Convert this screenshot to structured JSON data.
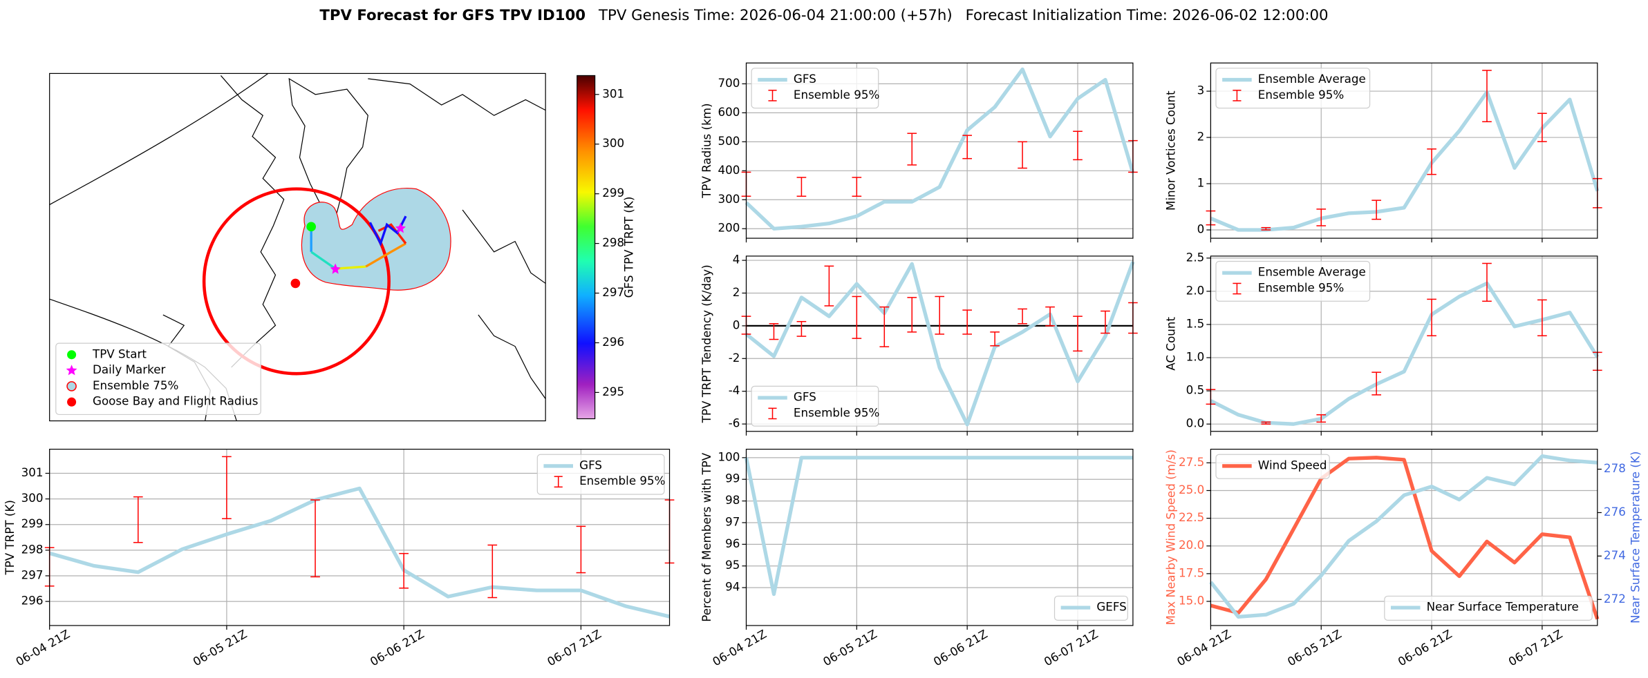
{
  "suptitle": {
    "title": "TPV Forecast for GFS TPV ID100",
    "genesis": "TPV Genesis Time: 2026-06-04 21:00:00 (+57h)",
    "init": "Forecast Initialization Time: 2026-06-02 12:00:00"
  },
  "chart_data": [
    {
      "type": "map",
      "colorbar": {
        "label": "GFS TPV TRPT (K)",
        "lim": [
          294.47,
          301.38
        ],
        "ticks": [
          295,
          296,
          297,
          298,
          299,
          300,
          301
        ]
      },
      "legend_loc": "lower left",
      "legend": [
        {
          "name": "TPV Start",
          "marker": "o",
          "color": "#00ff00"
        },
        {
          "name": "Daily Marker",
          "marker": "*",
          "color": "#ff00ff"
        },
        {
          "name": "Ensemble 75%",
          "marker": "o",
          "color": "#add8e6",
          "edgecolor": "#ff0000"
        },
        {
          "name": "Goose Bay and Flight Radius",
          "marker": "o",
          "color": "#ff0000"
        }
      ]
    },
    {
      "type": "line",
      "categories": [
        "06-04 21Z",
        null,
        null,
        null,
        "06-05 21Z",
        null,
        null,
        null,
        "06-06 21Z",
        null,
        null,
        null,
        "06-07 21Z",
        null,
        null
      ],
      "ylabel": "TPV TRPT (K)",
      "ylim": [
        295.06,
        301.94
      ],
      "yticks": [
        296,
        297,
        298,
        299,
        300,
        301
      ],
      "grid": true,
      "legend": "upper right",
      "series": [
        {
          "name": "GFS",
          "color": "#add8e6",
          "values": [
            297.88,
            297.39,
            297.14,
            298.04,
            298.62,
            299.15,
            299.96,
            300.41,
            297.22,
            296.19,
            296.56,
            296.43,
            296.43,
            295.82,
            295.41
          ]
        },
        {
          "name": "Ensemble 95%",
          "kind": "errorbar",
          "color": "#ff0000",
          "lower": [
            296.6,
            null,
            298.3,
            null,
            299.23,
            null,
            296.96,
            null,
            296.52,
            null,
            296.15,
            null,
            297.12,
            null,
            297.5
          ],
          "upper": [
            298.1,
            null,
            300.08,
            null,
            301.65,
            null,
            299.96,
            null,
            297.87,
            null,
            298.2,
            null,
            298.93,
            null,
            299.96
          ]
        }
      ]
    },
    {
      "type": "line",
      "categories": [
        "06-04 21Z",
        null,
        null,
        null,
        "06-05 21Z",
        null,
        null,
        null,
        "06-06 21Z",
        null,
        null,
        null,
        "06-07 21Z",
        null,
        null
      ],
      "panels": [
        {
          "ylabel": "TPV Radius (km)",
          "ylim": [
            167,
            772
          ],
          "yticks": [
            200,
            300,
            400,
            500,
            600,
            700
          ],
          "grid": true,
          "legend": "upper left",
          "series": [
            {
              "name": "GFS",
              "color": "#add8e6",
              "values": [
                290,
                200,
                207,
                218,
                243,
                293,
                293,
                344,
                540,
                620,
                750,
                518,
                649,
                714,
                392
              ]
            },
            {
              "name": "Ensemble 95%",
              "kind": "errorbar",
              "color": "#ff0000",
              "lower": [
                312,
                null,
                312,
                null,
                312,
                null,
                420,
                null,
                442,
                null,
                409,
                null,
                438,
                null,
                395
              ],
              "upper": [
                395,
                null,
                377,
                null,
                377,
                null,
                529,
                null,
                522,
                null,
                500,
                null,
                536,
                null,
                504
              ]
            }
          ]
        },
        {
          "ylabel": "TPV TRPT Tendency (K/day)",
          "ylim": [
            -6.45,
            4.26
          ],
          "yticks": [
            -6,
            -4,
            -2,
            0,
            2,
            4
          ],
          "grid": true,
          "legend": "lower left",
          "hline": 0,
          "series": [
            {
              "name": "GFS",
              "color": "#add8e6",
              "values": [
                -0.51,
                -1.86,
                1.73,
                0.58,
                2.56,
                0.77,
                3.78,
                -2.56,
                -6.03,
                -1.28,
                -0.38,
                0.71,
                -3.4,
                -0.64,
                3.91
              ]
            },
            {
              "name": "Ensemble 95%",
              "kind": "errorbar",
              "color": "#ff0000",
              "lower": [
                -0.51,
                -0.83,
                -0.64,
                1.22,
                -0.77,
                -1.28,
                -0.38,
                -0.51,
                -0.51,
                -1.22,
                0.13,
                0,
                -1.54,
                -0.45,
                -0.45
              ],
              "upper": [
                0.58,
                0.13,
                0.26,
                3.65,
                1.79,
                1.15,
                1.73,
                1.79,
                0.96,
                -0.38,
                1.03,
                1.15,
                0.58,
                0.9,
                1.41
              ]
            }
          ]
        },
        {
          "ylabel": "Percent of Members with TPV",
          "ylim": [
            92.25,
            100.39
          ],
          "yticks": [
            94,
            95,
            96,
            97,
            98,
            99,
            100
          ],
          "grid": true,
          "legend": "lower right",
          "series": [
            {
              "name": "GEFS",
              "color": "#add8e6",
              "values": [
                100,
                93.7,
                100,
                100,
                100,
                100,
                100,
                100,
                100,
                100,
                100,
                100,
                100,
                100,
                100
              ]
            }
          ]
        }
      ]
    },
    {
      "type": "line",
      "categories": [
        "06-04 21Z",
        null,
        null,
        null,
        "06-05 21Z",
        null,
        null,
        null,
        "06-06 21Z",
        null,
        null,
        null,
        "06-07 21Z",
        null,
        null
      ],
      "panels": [
        {
          "ylabel": "Minor Vortices Count",
          "ylim": [
            -0.18,
            3.61
          ],
          "yticks": [
            0,
            1,
            2,
            3
          ],
          "grid": true,
          "legend": "upper left",
          "series": [
            {
              "name": "Ensemble Average",
              "color": "#add8e6",
              "values": [
                0.25,
                0,
                0,
                0.05,
                0.25,
                0.36,
                0.39,
                0.48,
                1.45,
                2.14,
                2.98,
                1.34,
                2.2,
                2.82,
                0.84
              ]
            },
            {
              "name": "Ensemble 95%",
              "kind": "errorbar",
              "color": "#ff0000",
              "lower": [
                0.11,
                null,
                0,
                null,
                0.09,
                null,
                0.23,
                null,
                1.2,
                null,
                2.34,
                null,
                1.91,
                null,
                0.48
              ],
              "upper": [
                0.41,
                null,
                0.05,
                null,
                0.45,
                null,
                0.64,
                null,
                1.75,
                null,
                3.45,
                null,
                2.52,
                null,
                1.11
              ]
            }
          ]
        },
        {
          "ylabel": "AC Count",
          "ylim": [
            -0.11,
            2.53
          ],
          "yticks": [
            {
              "value": 0,
              "label": "0.0"
            },
            0.5,
            {
              "value": 1,
              "label": "1.0"
            },
            1.5,
            {
              "value": 2,
              "label": "2.0"
            },
            2.5
          ],
          "grid": true,
          "legend": "upper left",
          "series": [
            {
              "name": "Ensemble Average",
              "color": "#add8e6",
              "values": [
                0.35,
                0.14,
                0.02,
                0,
                0.08,
                0.38,
                0.6,
                0.79,
                1.65,
                1.92,
                2.12,
                1.47,
                1.57,
                1.68,
                1.01
              ]
            },
            {
              "name": "Ensemble 95%",
              "kind": "errorbar",
              "color": "#ff0000",
              "lower": [
                0.3,
                null,
                0,
                null,
                0.03,
                null,
                0.44,
                null,
                1.33,
                null,
                1.85,
                null,
                1.33,
                null,
                0.81
              ],
              "upper": [
                0.52,
                null,
                0.03,
                null,
                0.14,
                null,
                0.78,
                null,
                1.88,
                null,
                2.42,
                null,
                1.87,
                null,
                1.08
              ]
            }
          ]
        },
        {
          "ylabel": "Max Nearby Wind Speed (m/s)",
          "ycolor": "#ff6347",
          "ylim": [
            12.82,
            28.73
          ],
          "yticks": [
            {
              "value": 15,
              "label": "15.0"
            },
            17.5,
            {
              "value": 20,
              "label": "20.0"
            },
            22.5,
            {
              "value": 25,
              "label": "25.0"
            },
            27.5
          ],
          "y2label": "Near Surface Temperature (K)",
          "y2color": "#4169e1",
          "y2lim": [
            270.8,
            278.92
          ],
          "y2ticks": [
            272,
            274,
            276,
            278
          ],
          "grid": true,
          "legend": "upper left",
          "legend2": "lower right",
          "series": [
            {
              "name": "Wind Speed",
              "color": "#ff6347",
              "values": [
                14.62,
                13.96,
                16.99,
                21.53,
                26.08,
                27.88,
                27.97,
                27.78,
                19.55,
                17.27,
                20.4,
                18.5,
                21.06,
                20.78,
                13.4
              ]
            },
            {
              "name": "Near Surface Temperature",
              "color": "#add8e6",
              "axis": "y2",
              "values": [
                272.8,
                271.2,
                271.3,
                271.8,
                273.1,
                274.7,
                275.6,
                276.8,
                277.2,
                276.6,
                277.6,
                277.3,
                278.6,
                278.4,
                278.3
              ]
            }
          ]
        }
      ]
    }
  ]
}
